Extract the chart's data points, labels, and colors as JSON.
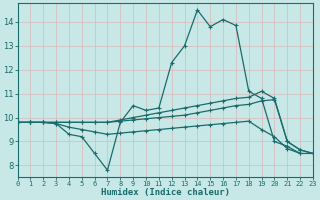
{
  "xlabel": "Humidex (Indice chaleur)",
  "xlim": [
    0,
    23
  ],
  "ylim": [
    7.5,
    14.8
  ],
  "background_color": "#c8e8e8",
  "grid_color": "#b8d8d8",
  "line_color": "#1a6b6b",
  "lines": [
    {
      "x": [
        0,
        1,
        2,
        3,
        4,
        5,
        6,
        7,
        8,
        9,
        10,
        11,
        12,
        13,
        14,
        15,
        16,
        17,
        18,
        19,
        20,
        21,
        22
      ],
      "y": [
        9.8,
        9.8,
        9.8,
        9.75,
        9.3,
        9.2,
        8.5,
        7.8,
        9.8,
        10.5,
        10.3,
        10.4,
        12.3,
        13.0,
        14.5,
        13.8,
        14.1,
        13.85,
        11.1,
        10.8,
        9.0,
        8.8,
        8.5
      ]
    },
    {
      "x": [
        0,
        1,
        2,
        3,
        4,
        5,
        6,
        7,
        8,
        9,
        10,
        11,
        12,
        13,
        14,
        15,
        16,
        17,
        18,
        19,
        20,
        21,
        22,
        23
      ],
      "y": [
        9.8,
        9.8,
        9.8,
        9.8,
        9.8,
        9.8,
        9.8,
        9.8,
        9.9,
        10.0,
        10.1,
        10.2,
        10.3,
        10.4,
        10.5,
        10.6,
        10.7,
        10.8,
        10.85,
        11.1,
        10.8,
        9.0,
        8.65,
        8.5
      ]
    },
    {
      "x": [
        0,
        1,
        2,
        3,
        4,
        5,
        6,
        7,
        8,
        9,
        10,
        11,
        12,
        13,
        14,
        15,
        16,
        17,
        18,
        19,
        20,
        21,
        22,
        23
      ],
      "y": [
        9.8,
        9.8,
        9.8,
        9.8,
        9.8,
        9.8,
        9.8,
        9.8,
        9.85,
        9.9,
        9.95,
        10.0,
        10.05,
        10.1,
        10.2,
        10.3,
        10.4,
        10.5,
        10.55,
        10.7,
        10.75,
        9.0,
        8.65,
        8.5
      ]
    },
    {
      "x": [
        0,
        1,
        2,
        3,
        4,
        5,
        6,
        7,
        8,
        9,
        10,
        11,
        12,
        13,
        14,
        15,
        16,
        17,
        18,
        19,
        20,
        21,
        22,
        23
      ],
      "y": [
        9.8,
        9.8,
        9.8,
        9.75,
        9.6,
        9.5,
        9.4,
        9.3,
        9.35,
        9.4,
        9.45,
        9.5,
        9.55,
        9.6,
        9.65,
        9.7,
        9.75,
        9.8,
        9.85,
        9.5,
        9.2,
        8.7,
        8.5,
        8.5
      ]
    }
  ],
  "yticks": [
    8,
    9,
    10,
    11,
    12,
    13,
    14
  ],
  "xtick_labels": [
    "0",
    "1",
    "2",
    "3",
    "4",
    "5",
    "6",
    "7",
    "8",
    "9",
    "10",
    "11",
    "12",
    "13",
    "14",
    "15",
    "16",
    "17",
    "18",
    "19",
    "20",
    "21",
    "22",
    "23"
  ]
}
